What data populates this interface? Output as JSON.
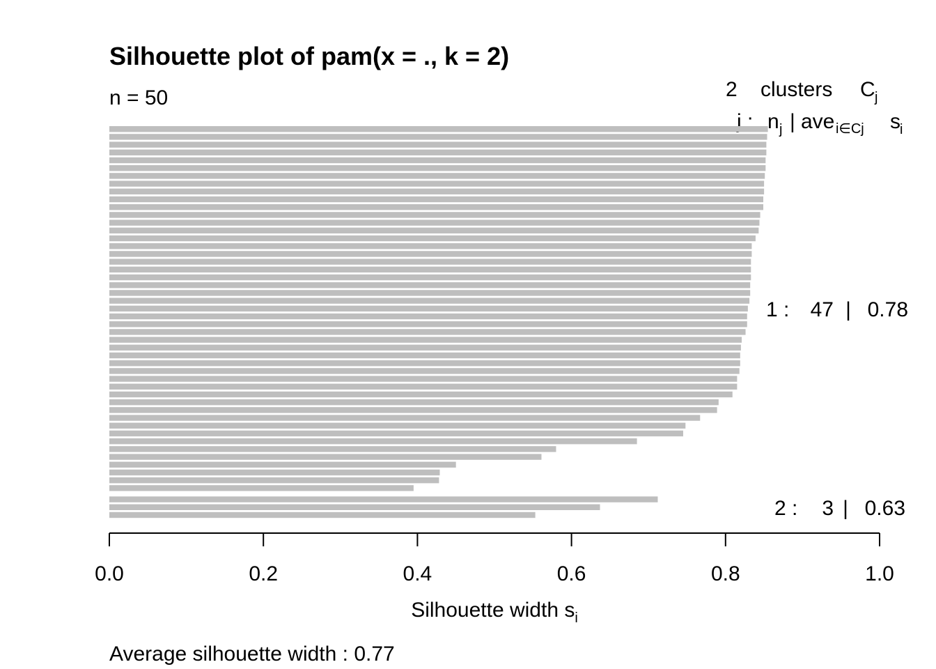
{
  "chart_data": {
    "type": "bar",
    "orientation": "horizontal",
    "title": "Silhouette plot of pam(x = ., k = 2)",
    "n_label": "n = 50",
    "legend_header": {
      "count": "2",
      "clusters_word": "clusters",
      "c_letter": "C",
      "c_sub": "j",
      "j_label": "j :",
      "n_letter": "n",
      "n_sub": "j",
      "sep": "|",
      "ave_word": "ave",
      "ave_sub": "i∈Cj",
      "s_letter": "s",
      "s_sub": "i"
    },
    "xlabel": "Silhouette width s",
    "xlabel_sub": "i",
    "xlim": [
      0,
      1
    ],
    "xticks": [
      "0.0",
      "0.2",
      "0.4",
      "0.6",
      "0.8",
      "1.0"
    ],
    "footer": "Average silhouette width :  0.77",
    "bar_color": "#bebebe",
    "clusters": [
      {
        "id": "1",
        "size": "47",
        "avg": "0.78",
        "label_id": "1 :",
        "label_sep": "|",
        "values": [
          0.855,
          0.854,
          0.853,
          0.853,
          0.852,
          0.852,
          0.851,
          0.85,
          0.85,
          0.849,
          0.849,
          0.845,
          0.844,
          0.843,
          0.839,
          0.834,
          0.834,
          0.833,
          0.833,
          0.833,
          0.832,
          0.832,
          0.831,
          0.829,
          0.828,
          0.828,
          0.826,
          0.821,
          0.82,
          0.819,
          0.819,
          0.818,
          0.815,
          0.815,
          0.809,
          0.791,
          0.789,
          0.767,
          0.748,
          0.745,
          0.685,
          0.58,
          0.561,
          0.45,
          0.429,
          0.428,
          0.395
        ]
      },
      {
        "id": "2",
        "size": "3",
        "avg": "0.63",
        "label_id": "2 :",
        "label_sep": "|",
        "values": [
          0.712,
          0.637,
          0.553
        ]
      }
    ]
  }
}
